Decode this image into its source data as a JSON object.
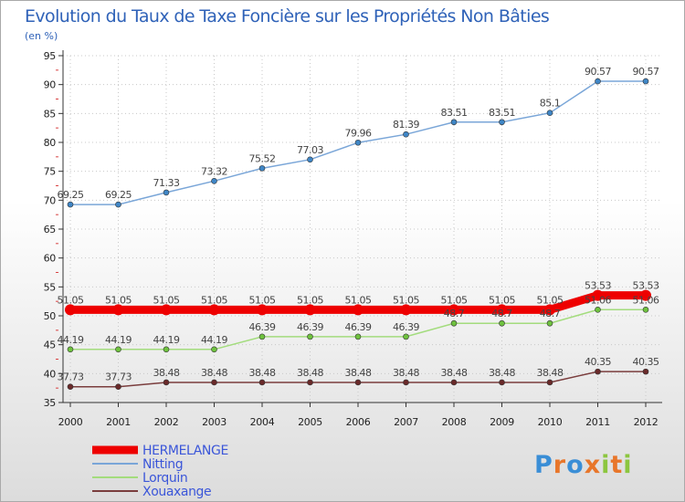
{
  "chart_data": {
    "type": "line",
    "title": "Evolution du Taux de Taxe Foncière sur les Propriétés Non Bâties",
    "ylabel": "(en %)",
    "xlabel": "",
    "ylim": [
      35,
      95
    ],
    "yticks": [
      35,
      40,
      45,
      50,
      55,
      60,
      65,
      70,
      75,
      80,
      85,
      90,
      95
    ],
    "grid": true,
    "legend_position": "bottom-left",
    "x": [
      "2000",
      "2001",
      "2002",
      "2003",
      "2004",
      "2005",
      "2006",
      "2007",
      "2008",
      "2009",
      "2010",
      "2011",
      "2012"
    ],
    "series": [
      {
        "name": "Nitting",
        "color": "#7aa6d8",
        "marker": "#3f86c6",
        "values": [
          69.25,
          69.25,
          71.33,
          73.32,
          75.52,
          77.03,
          79.96,
          81.39,
          83.51,
          83.51,
          85.1,
          90.57,
          90.57
        ],
        "labels": [
          "69.25",
          "69.25",
          "71.33",
          "73.32",
          "75.52",
          "77.03",
          "79.96",
          "81.39",
          "83.51",
          "83.51",
          "85.1",
          "90.57",
          "90.57"
        ]
      },
      {
        "name": "Lorquin",
        "color": "#a3dc7d",
        "marker": "#6fc23f",
        "values": [
          44.19,
          44.19,
          44.19,
          44.19,
          46.39,
          46.39,
          46.39,
          46.39,
          48.7,
          48.7,
          48.7,
          51.06,
          51.06
        ],
        "labels": [
          "44.19",
          "44.19",
          "44.19",
          "44.19",
          "46.39",
          "46.39",
          "46.39",
          "46.39",
          "48.7",
          "48.7",
          "48.7",
          "51.06",
          "51.06"
        ]
      },
      {
        "name": "Xouaxange",
        "color": "#7a3d3d",
        "marker": "#6a2a2a",
        "values": [
          37.73,
          37.73,
          38.48,
          38.48,
          38.48,
          38.48,
          38.48,
          38.48,
          38.48,
          38.48,
          38.48,
          40.35,
          40.35
        ],
        "labels": [
          "37.73",
          "37.73",
          "38.48",
          "38.48",
          "38.48",
          "38.48",
          "38.48",
          "38.48",
          "38.48",
          "38.48",
          "38.48",
          "40.35",
          "40.35"
        ]
      },
      {
        "name": "HERMELANGE",
        "color": "#ee0000",
        "marker": "#ee0000",
        "thick": true,
        "values": [
          51.05,
          51.05,
          51.05,
          51.05,
          51.05,
          51.05,
          51.05,
          51.05,
          51.05,
          51.05,
          51.05,
          53.53,
          53.53
        ],
        "labels": [
          "51.05",
          "51.05",
          "51.05",
          "51.05",
          "51.05",
          "51.05",
          "51.05",
          "51.05",
          "51.05",
          "51.05",
          "51.05",
          "53.53",
          "53.53"
        ]
      }
    ],
    "legend": [
      "HERMELANGE",
      "Nitting",
      "Lorquin",
      "Xouaxange"
    ]
  },
  "logo": {
    "text": "Proxiti",
    "letters": [
      "P",
      "r",
      "o",
      "x",
      "i",
      "t",
      "i"
    ],
    "colors": [
      "#3a8ed6",
      "#e8762a",
      "#3a8ed6",
      "#e8762a",
      "#8cc63f",
      "#e8762a",
      "#8cc63f"
    ]
  }
}
